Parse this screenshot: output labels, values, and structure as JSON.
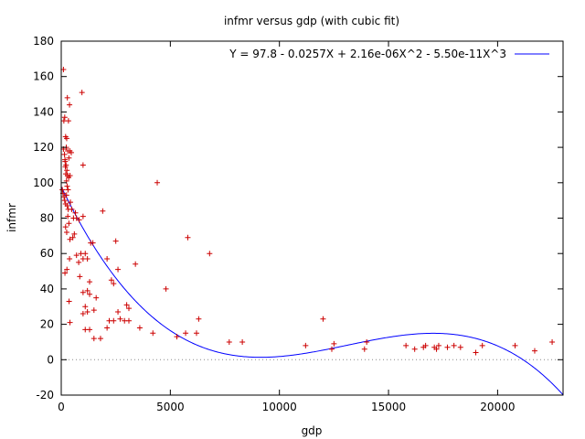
{
  "chart_data": {
    "type": "scatter",
    "title": "infmr versus gdp (with cubic fit)",
    "xlabel": "gdp",
    "ylabel": "infmr",
    "xlim": [
      0,
      23000
    ],
    "ylim": [
      -20,
      180
    ],
    "x_ticks": [
      0,
      5000,
      10000,
      15000,
      20000
    ],
    "y_ticks": [
      -20,
      0,
      20,
      40,
      60,
      80,
      100,
      120,
      140,
      160,
      180
    ],
    "grid": false,
    "zero_line": true,
    "legend": {
      "position": "top-right",
      "entries": [
        {
          "label": "Y = 97.8 - 0.0257X + 2.16e-06X^2 - 5.50e-11X^3",
          "color": "#0000ff"
        }
      ]
    },
    "series": [
      {
        "kind": "points",
        "marker": "+",
        "color": "#cc0000",
        "points": [
          [
            100,
            164
          ],
          [
            120,
            135
          ],
          [
            160,
            137
          ],
          [
            200,
            126
          ],
          [
            250,
            125
          ],
          [
            280,
            148
          ],
          [
            330,
            135
          ],
          [
            380,
            144
          ],
          [
            230,
            120
          ],
          [
            300,
            118
          ],
          [
            350,
            114
          ],
          [
            180,
            112
          ],
          [
            220,
            110
          ],
          [
            260,
            107
          ],
          [
            290,
            104
          ],
          [
            340,
            103
          ],
          [
            400,
            104
          ],
          [
            100,
            119
          ],
          [
            150,
            116
          ],
          [
            170,
            113
          ],
          [
            190,
            109
          ],
          [
            210,
            105
          ],
          [
            240,
            101
          ],
          [
            270,
            98
          ],
          [
            310,
            96
          ],
          [
            50,
            96
          ],
          [
            80,
            94
          ],
          [
            130,
            92
          ],
          [
            160,
            90
          ],
          [
            200,
            88
          ],
          [
            240,
            93
          ],
          [
            280,
            87
          ],
          [
            320,
            85
          ],
          [
            420,
            89
          ],
          [
            480,
            85
          ],
          [
            560,
            80
          ],
          [
            650,
            83
          ],
          [
            700,
            80
          ],
          [
            820,
            79
          ],
          [
            390,
            118
          ],
          [
            460,
            117
          ],
          [
            1000,
            110
          ],
          [
            950,
            151
          ],
          [
            1000,
            81
          ],
          [
            300,
            81
          ],
          [
            350,
            77
          ],
          [
            200,
            75
          ],
          [
            250,
            72
          ],
          [
            400,
            68
          ],
          [
            530,
            69
          ],
          [
            600,
            71
          ],
          [
            380,
            57
          ],
          [
            170,
            49
          ],
          [
            260,
            51
          ],
          [
            360,
            33
          ],
          [
            400,
            21
          ],
          [
            900,
            60
          ],
          [
            1000,
            57
          ],
          [
            1100,
            60
          ],
          [
            1200,
            57
          ],
          [
            800,
            55
          ],
          [
            700,
            59
          ],
          [
            850,
            47
          ],
          [
            1350,
            66
          ],
          [
            1450,
            66
          ],
          [
            1300,
            44
          ],
          [
            1000,
            38
          ],
          [
            1200,
            39
          ],
          [
            1300,
            37
          ],
          [
            1100,
            30
          ],
          [
            1200,
            27
          ],
          [
            1500,
            28
          ],
          [
            1000,
            26
          ],
          [
            1600,
            35
          ],
          [
            1100,
            17
          ],
          [
            1300,
            17
          ],
          [
            1500,
            12
          ],
          [
            1800,
            12
          ],
          [
            1900,
            84
          ],
          [
            2100,
            57
          ],
          [
            2300,
            45
          ],
          [
            2400,
            43
          ],
          [
            2500,
            67
          ],
          [
            2600,
            51
          ],
          [
            2200,
            22
          ],
          [
            2400,
            22
          ],
          [
            2600,
            27
          ],
          [
            2700,
            23
          ],
          [
            2900,
            22
          ],
          [
            3000,
            31
          ],
          [
            3100,
            29
          ],
          [
            3100,
            22
          ],
          [
            2100,
            18
          ],
          [
            3400,
            54
          ],
          [
            3600,
            18
          ],
          [
            4200,
            15
          ],
          [
            4400,
            100
          ],
          [
            4800,
            40
          ],
          [
            5300,
            13
          ],
          [
            5700,
            15
          ],
          [
            5800,
            69
          ],
          [
            6200,
            15
          ],
          [
            6300,
            23
          ],
          [
            6800,
            60
          ],
          [
            7700,
            10
          ],
          [
            8300,
            10
          ],
          [
            11200,
            8
          ],
          [
            12000,
            23
          ],
          [
            12400,
            6
          ],
          [
            12500,
            9
          ],
          [
            13900,
            6
          ],
          [
            14000,
            10
          ],
          [
            15800,
            8
          ],
          [
            16200,
            6
          ],
          [
            16600,
            7
          ],
          [
            16700,
            8
          ],
          [
            17100,
            7
          ],
          [
            17200,
            6
          ],
          [
            17300,
            8
          ],
          [
            17700,
            7
          ],
          [
            18000,
            8
          ],
          [
            18300,
            7
          ],
          [
            19000,
            4
          ],
          [
            19300,
            8
          ],
          [
            20800,
            8
          ],
          [
            21700,
            5
          ],
          [
            22500,
            10
          ]
        ]
      },
      {
        "kind": "fit-curve",
        "color": "#0000ff",
        "coefficients": [
          97.8,
          -0.0257,
          2.16e-06,
          -5.5e-11
        ]
      }
    ]
  }
}
